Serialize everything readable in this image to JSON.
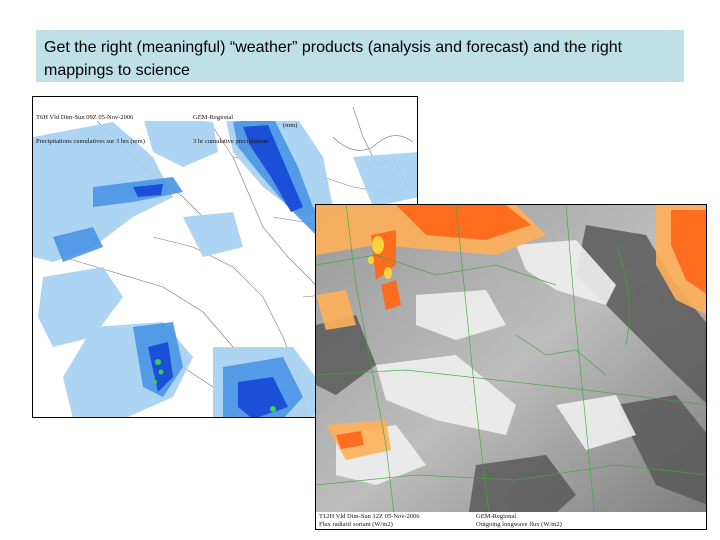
{
  "slide": {
    "title": "Get the right (meaningful) “weather” products (analysis and forecast) and the right mappings to science"
  },
  "map_precip": {
    "header_left_1": "T6H Vld Dim-Sun 09Z 05-Nov-2006",
    "header_left_2": "Precipitations cumulatives sur 3 hrs (mm)",
    "header_right_1": "GEM-Regional",
    "header_right_2": "3 hr cumulative precipitation",
    "header_unit": "(mm)",
    "colors": {
      "light": "#a9d2f2",
      "medium": "#4a95e6",
      "dark": "#1b4fd8",
      "bright": "#3ad14e"
    }
  },
  "map_flux": {
    "footer_left_1": "T12H Vld Dim-Sun 12Z 05-Nov-2006",
    "footer_left_2": "Flux radiatif sortant (W/m2)",
    "footer_right_1": "GEM-Regional",
    "footer_right_2": "Outgoing longwave flux (W/m2)",
    "colors": {
      "hot": "#ff6a1a",
      "warm": "#ffb05a",
      "cloud": "#f0f0f0",
      "ground": "#6b6b6b",
      "lines": "#3fa83f"
    }
  }
}
